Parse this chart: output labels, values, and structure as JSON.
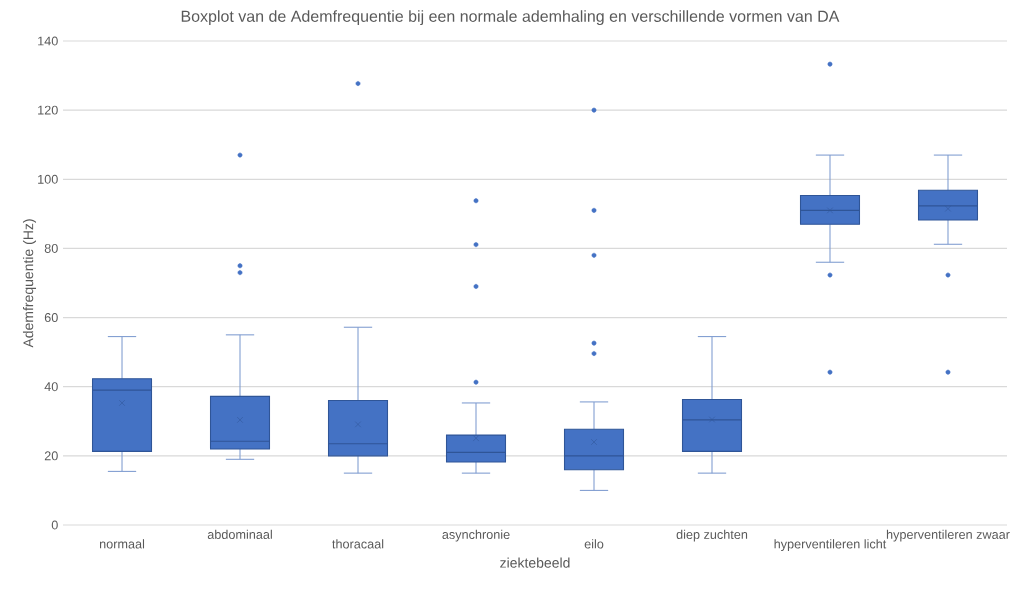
{
  "chart_data": {
    "type": "box",
    "title": "Boxplot van de Ademfrequentie bij een normale ademhaling en verschillende vormen van DA",
    "xlabel": "ziektebeeld",
    "ylabel": "Ademfrequentie (Hz)",
    "categories": [
      "normaal",
      "abdominaal",
      "thoracaal",
      "asynchronie",
      "eilo",
      "diep zuchten",
      "hyperventileren licht",
      "hyperventileren zwaar"
    ],
    "color": "#4472c4",
    "boxes": [
      {
        "low": 15.5,
        "q1": 21.3,
        "median": 39,
        "q3": 42.3,
        "high": 54.5,
        "mean": 35.3
      },
      {
        "low": 19,
        "q1": 22,
        "median": 24.2,
        "q3": 37.2,
        "high": 55,
        "mean": 30.4,
        "outliers": [
          107,
          75,
          73
        ]
      },
      {
        "low": 15,
        "q1": 20,
        "median": 23.5,
        "q3": 36,
        "high": 57.2,
        "mean": 29.1,
        "outliers": [
          127.7
        ]
      },
      {
        "low": 15,
        "q1": 18.2,
        "median": 21,
        "q3": 26,
        "high": 35.3,
        "mean": 25.1,
        "outliers": [
          93.8,
          81.1,
          69,
          41.3
        ]
      },
      {
        "low": 10,
        "q1": 16,
        "median": 20,
        "q3": 27.7,
        "high": 35.6,
        "mean": 24,
        "outliers": [
          120,
          91,
          78,
          52.6,
          49.6
        ]
      },
      {
        "low": 15,
        "q1": 21.3,
        "median": 30.4,
        "q3": 36.3,
        "high": 54.5,
        "mean": 30.5
      },
      {
        "low": 76,
        "q1": 87,
        "median": 91,
        "q3": 95.3,
        "high": 107,
        "mean": 91,
        "outliers": [
          133.3,
          72.3,
          44.2
        ]
      },
      {
        "low": 81.2,
        "q1": 88.2,
        "median": 92.3,
        "q3": 96.8,
        "high": 107,
        "mean": 91.5,
        "outliers": [
          72.3,
          44.2
        ]
      }
    ],
    "ylim": [
      0,
      140
    ],
    "yticks": [
      0,
      20,
      40,
      60,
      80,
      100,
      120,
      140
    ],
    "grid": "y"
  }
}
